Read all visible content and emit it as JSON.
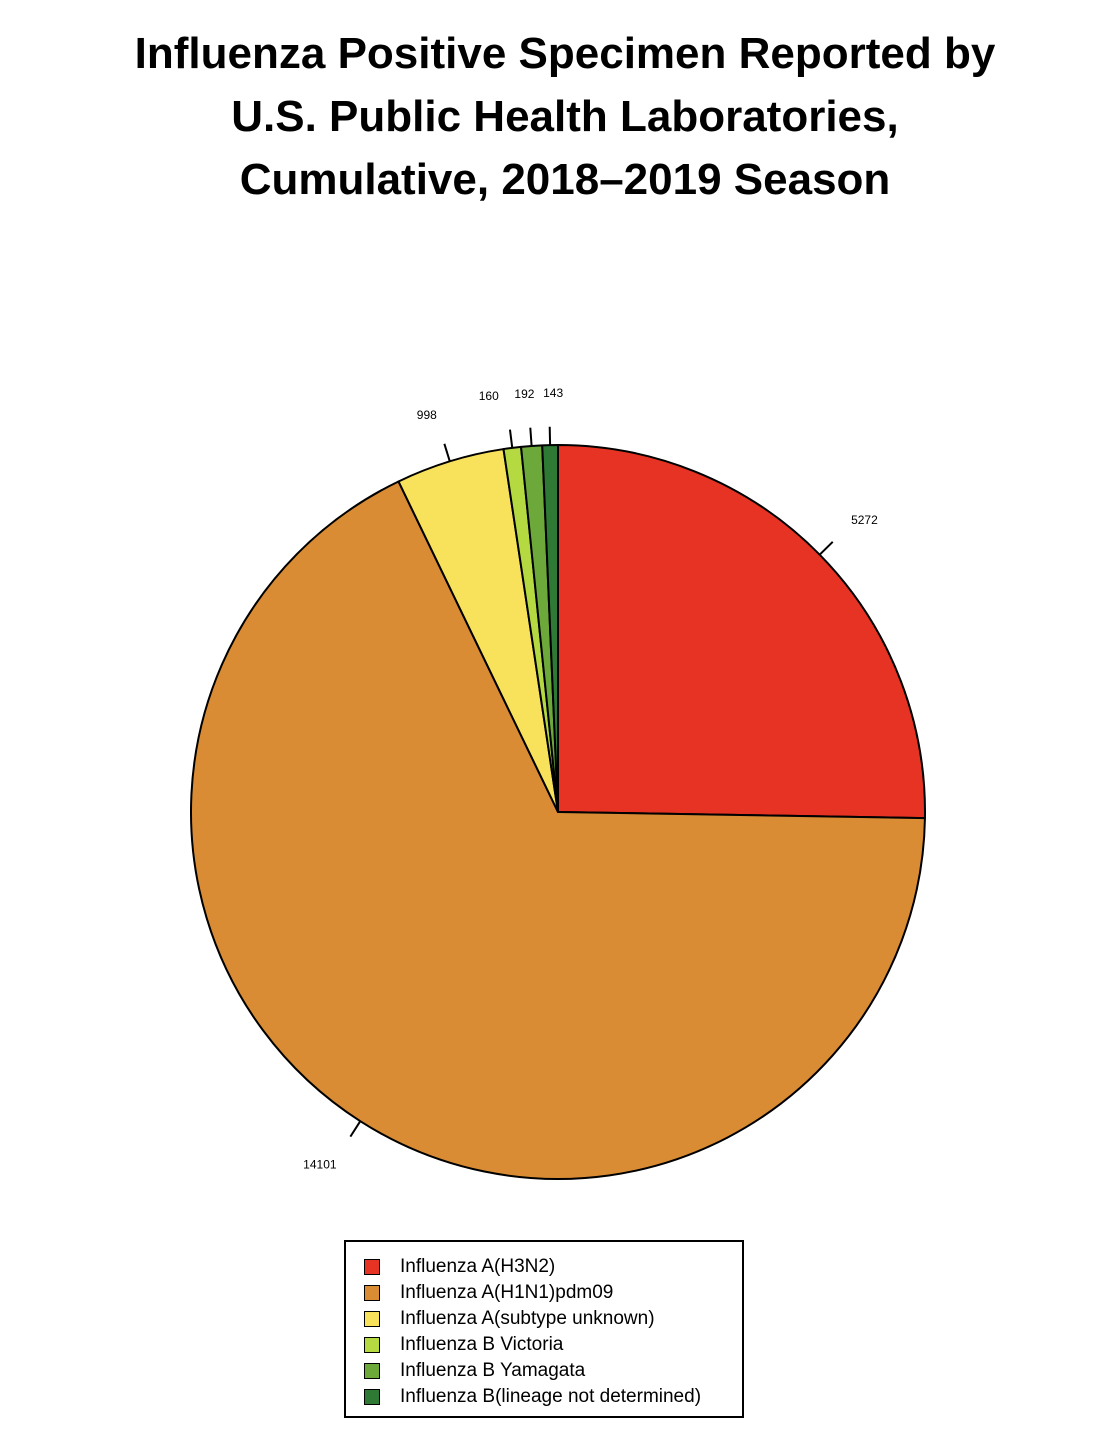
{
  "title_lines": [
    "Influenza Positive Specimen Reported by",
    "U.S. Public Health Laboratories,",
    "Cumulative, 2018–2019 Season"
  ],
  "chart_data": {
    "type": "pie",
    "title": "Influenza Positive Specimen Reported by U.S. Public Health Laboratories, Cumulative, 2018–2019 Season",
    "start": "12 o'clock",
    "direction": "clockwise",
    "slices": [
      {
        "label": "Influenza A(H3N2)",
        "value": 5272,
        "value_label": "5272",
        "color": "#e63323"
      },
      {
        "label": "Influenza A(H1N1)pdm09",
        "value": 14101,
        "value_label": "14101",
        "color": "#d98c34"
      },
      {
        "label": "Influenza A(subtype unknown)",
        "value": 998,
        "value_label": "998",
        "color": "#f8e15b"
      },
      {
        "label": "Influenza B Victoria",
        "value": 160,
        "value_label": "160",
        "color": "#b4d941"
      },
      {
        "label": "Influenza B Yamagata",
        "value": 192,
        "value_label": "192",
        "color": "#6ca83a"
      },
      {
        "label": "Influenza B(lineage not determined)",
        "value": 143,
        "value_label": "143",
        "color": "#2e7a34"
      }
    ],
    "legend_placement": "bottom"
  }
}
